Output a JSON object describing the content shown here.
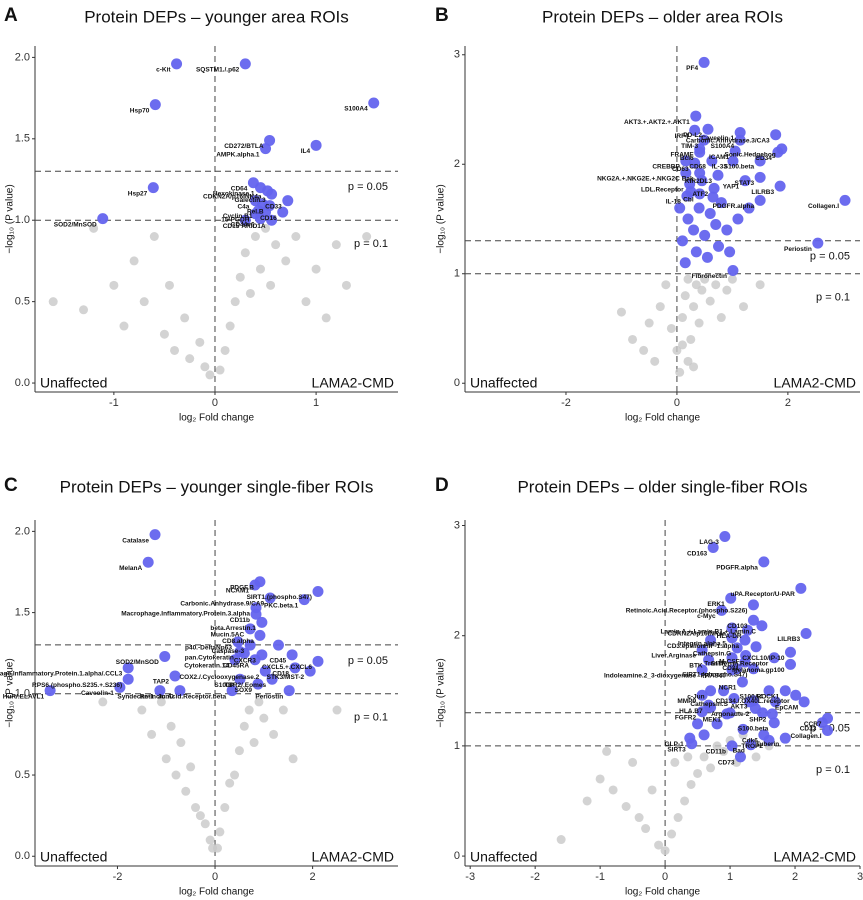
{
  "chart_data": [
    {
      "type": "scatter",
      "panel": "A",
      "title": "Protein DEPs – younger area ROIs",
      "xlabel": "log₂ Fold change",
      "ylabel": "−log₁₀ (P value)",
      "left_label": "Unaffected",
      "right_label": "LAMA2-CMD",
      "xlim": [
        -1.78,
        1.81
      ],
      "ylim": [
        -0.055,
        2.07
      ],
      "xticks": [
        -1,
        0,
        1
      ],
      "yticks": [
        {
          "value": 0,
          "label": "0.0"
        },
        {
          "value": 0.5,
          "label": "0.5"
        },
        {
          "value": 1,
          "label": "1.0"
        },
        {
          "value": 1.5,
          "label": "1.5"
        },
        {
          "value": 2,
          "label": "2.0"
        }
      ],
      "thresholds": [
        {
          "value": 1.30103,
          "label": "p = 0.05"
        },
        {
          "value": 1,
          "label": "p = 0.1"
        }
      ],
      "vline": 0,
      "series": [
        {
          "color": "#6464ee",
          "x": [
            -0.38,
            0.3,
            -0.59,
            1.57,
            0.54,
            1.0,
            0.5,
            -0.61,
            -1.11,
            0.38,
            0.45,
            0.52,
            0.56,
            0.4,
            0.72,
            0.43,
            0.54,
            0.4,
            0.67,
            0.45,
            0.56,
            0.3,
            0.5,
            0.47
          ],
          "values": [
            1.96,
            1.96,
            1.71,
            1.72,
            1.49,
            1.46,
            1.44,
            1.2,
            1.01,
            1.23,
            1.2,
            1.18,
            1.16,
            1.12,
            1.12,
            1.06,
            1.09,
            1.04,
            1.05,
            1.01,
            1.0,
            1.0,
            1.05,
            1.1
          ],
          "labels": [
            "c-Kit",
            "SQSTM1./.p62",
            "Hsp70",
            "S100A4",
            "CD272/BTLA",
            "IL4",
            "AMPK.alpha.1",
            "Hsp27",
            "SOD2/MnSOD",
            "CD64",
            "Hexokinase.1",
            "CDKN2A/p16INK4a",
            "Galectin.3",
            "C4a",
            "CD33",
            "Cyclin.B1",
            "Rel.B",
            "15-PGDH",
            "CD16",
            "CD44v6",
            "ARID1A",
            "CD15",
            null,
            null
          ]
        },
        {
          "color": "#c8c8c8",
          "x": [
            -1.6,
            -1.3,
            -1.2,
            -1.0,
            -0.9,
            -0.8,
            -0.7,
            -0.6,
            -0.5,
            -0.45,
            -0.4,
            -0.3,
            -0.25,
            -0.15,
            -0.1,
            -0.05,
            0.05,
            0.1,
            0.15,
            0.2,
            0.25,
            0.3,
            0.35,
            0.4,
            0.45,
            0.5,
            0.55,
            0.6,
            0.7,
            0.8,
            0.9,
            1.0,
            1.1,
            1.2,
            1.3,
            1.5
          ],
          "values": [
            0.5,
            0.45,
            0.95,
            0.6,
            0.35,
            0.75,
            0.5,
            0.9,
            0.3,
            0.6,
            0.2,
            0.4,
            0.15,
            0.25,
            0.1,
            0.05,
            0.08,
            0.2,
            0.35,
            0.5,
            0.65,
            0.8,
            0.55,
            0.9,
            0.7,
            0.95,
            0.6,
            0.85,
            0.75,
            0.9,
            0.5,
            0.7,
            0.4,
            0.85,
            0.6,
            0.9
          ]
        }
      ]
    },
    {
      "type": "scatter",
      "panel": "B",
      "title": "Protein DEPs – older area ROIs",
      "xlabel": "log₂ Fold change",
      "ylabel": "−log₁₀ (P value)",
      "left_label": "Unaffected",
      "right_label": "LAMA2-CMD",
      "xlim": [
        -3.82,
        3.3
      ],
      "ylim": [
        -0.08,
        3.08
      ],
      "xticks": [
        -2,
        0,
        2
      ],
      "yticks": [
        0,
        1,
        2,
        3
      ],
      "thresholds": [
        {
          "value": 1.30103,
          "label": "p = 0.05"
        },
        {
          "value": 1,
          "label": "p = 0.1"
        }
      ],
      "vline": 0,
      "series": [
        {
          "color": "#6464ee",
          "x": [
            0.49,
            0.34,
            0.32,
            0.56,
            1.14,
            0.49,
            1.78,
            1.89,
            0.41,
            0.41,
            1.14,
            1.05,
            1.82,
            0.16,
            0.32,
            0.63,
            1.01,
            1.5,
            0.16,
            0.41,
            0.74,
            1.5,
            0.23,
            0.67,
            1.23,
            1.86,
            0.18,
            0.41,
            3.03,
            1.5,
            2.54,
            1.01,
            0.1,
            0.2,
            0.3,
            0.4,
            0.5,
            0.6,
            0.7,
            0.8,
            0.9,
            0.25,
            0.45,
            0.65,
            0.15,
            0.35,
            0.55,
            1.1,
            1.3,
            0.75,
            0.05,
            0.95
          ],
          "values": [
            2.93,
            2.44,
            2.31,
            2.32,
            2.29,
            2.22,
            2.27,
            2.14,
            2.14,
            2.11,
            2.22,
            2.12,
            2.11,
            2.03,
            2.01,
            2.03,
            2.03,
            2.03,
            1.92,
            1.92,
            1.9,
            1.88,
            1.82,
            1.78,
            1.85,
            1.8,
            1.71,
            1.73,
            1.67,
            1.67,
            1.28,
            1.03,
            1.3,
            1.5,
            1.4,
            1.6,
            1.35,
            1.55,
            1.45,
            1.65,
            1.4,
            1.75,
            1.85,
            1.7,
            1.1,
            1.2,
            1.15,
            1.5,
            1.6,
            1.25,
            1.6,
            1.2
          ],
          "labels": [
            "PF4",
            "AKT3.+.AKT2.+.AKT1",
            "IRF4",
            "PD-L2",
            "Caveolin-1",
            "TIM-3",
            "Carbonic.Anhydrase.3/CA3",
            "Sonic.Hedgehog",
            "FRAME",
            "Bcl6",
            "S100A4",
            "ICAM1",
            "CD34",
            "CREBBP",
            "CD63",
            "CD68",
            "IL-33",
            "S100.beta",
            "NKG2A.+.NKG2E.+.NKG2C",
            "Bak",
            "KIR2DL3",
            "STAT3",
            "LDL.Receptor",
            "ATF2",
            "YAP1",
            "LILRB3",
            "IL-18",
            "Cbl",
            "Collagen.I",
            "PDGFR.alpha",
            "Periostin",
            "Fibronectin",
            null,
            null,
            null,
            null,
            null,
            null,
            null,
            null,
            null,
            null,
            null,
            null,
            null,
            null,
            null,
            null,
            null,
            null,
            null,
            null
          ]
        },
        {
          "color": "#c8c8c8",
          "x": [
            -1.0,
            -0.8,
            -0.6,
            -0.5,
            -0.4,
            -0.3,
            -0.2,
            -0.1,
            0,
            0.05,
            0.1,
            0.15,
            0.2,
            0.25,
            0.3,
            0.35,
            0.4,
            0.45,
            0.5,
            0.6,
            0.7,
            0.8,
            0.9,
            1.0,
            1.2,
            1.5,
            0.2,
            0.1,
            0.3
          ],
          "values": [
            0.65,
            0.4,
            0.3,
            0.55,
            0.2,
            0.7,
            0.9,
            0.5,
            0.3,
            0.1,
            0.6,
            0.8,
            0.95,
            0.4,
            0.7,
            0.9,
            0.55,
            0.85,
            0.95,
            0.75,
            0.9,
            0.6,
            0.85,
            0.95,
            0.7,
            0.9,
            0.2,
            0.35,
            0.15
          ]
        }
      ]
    },
    {
      "type": "scatter",
      "panel": "C",
      "title": "Protein DEPs – younger single-fiber ROIs",
      "xlabel": "log₂ Fold change",
      "ylabel": "−log₁₀ (P value)",
      "left_label": "Unaffected",
      "right_label": "LAMA2-CMD",
      "xlim": [
        -3.69,
        3.75
      ],
      "ylim": [
        -0.06,
        2.07
      ],
      "xticks": [
        -2,
        0,
        2
      ],
      "yticks": [
        {
          "value": 0,
          "label": "0.0"
        },
        {
          "value": 0.5,
          "label": "0.5"
        },
        {
          "value": 1,
          "label": "1.0"
        },
        {
          "value": 1.5,
          "label": "1.5"
        },
        {
          "value": 2,
          "label": "2.0"
        }
      ],
      "thresholds": [
        {
          "value": 1.30103,
          "label": "p = 0.05"
        },
        {
          "value": 1,
          "label": "p = 0.1"
        }
      ],
      "vline": 0,
      "series": [
        {
          "color": "#6464ee",
          "x": [
            -1.23,
            -1.37,
            0.92,
            0.82,
            2.11,
            0.84,
            1.13,
            1.83,
            0.84,
            0.96,
            0.72,
            0.92,
            0.47,
            0.72,
            0.96,
            0.51,
            1.58,
            0.41,
            0.82,
            -1.03,
            2.11,
            1.64,
            -1.78,
            1.03,
            1.95,
            -1.78,
            -0.82,
            0.51,
            0.88,
            1.17,
            -0.72,
            -1.95,
            -1.13,
            -3.38,
            0.35,
            1.52,
            0.6,
            1.3
          ],
          "values": [
            1.98,
            1.81,
            1.69,
            1.67,
            1.63,
            1.53,
            1.59,
            1.58,
            1.49,
            1.44,
            1.4,
            1.36,
            1.32,
            1.3,
            1.24,
            1.26,
            1.24,
            1.21,
            1.21,
            1.23,
            1.2,
            1.16,
            1.16,
            1.14,
            1.14,
            1.09,
            1.11,
            1.09,
            1.06,
            1.09,
            1.02,
            1.04,
            1.02,
            1.02,
            1.02,
            1.02,
            1.25,
            1.3
          ],
          "labels": [
            "Catalase",
            "MelanA",
            "PDGF.B",
            "NCAM1",
            "SIRT1.(phospho.S47)",
            "Macrophage.Inflammatory.Protein.3.alpha",
            "Carbonic.Anhydrase.9/CA9",
            "PKC.beta.1",
            "CD11b",
            "beta.Arrestin.1",
            "Mucin.5AC",
            "CD8.alpha",
            "p40.-DeltaNp63",
            "Caspase-3",
            "CXCR3",
            "pan.Cytokeratin",
            "CD45",
            "Cytokeratin.14",
            "CD45RA",
            "SOD2/MnSOD",
            "CXCL5.+.CXCL6",
            "CD18",
            "Macrophage.Inflammatory.Protein.1.alpha/.CCL3",
            "COX2./.Cyclooxygenase.2",
            "STK3/MST-2",
            "RPS6.(phospho.S235.+.S236)",
            "TAP2",
            "S100P",
            "SOX9",
            "TBR2/.Eomes",
            "JunD",
            "Caveolin-1",
            "Syndecan-1",
            "HuR/.ELAVL1",
            "Retinoic.Acid.Receptor.beta",
            "Periostin",
            null,
            null
          ]
        },
        {
          "color": "#c8c8c8",
          "x": [
            -1.5,
            -1.3,
            -1.1,
            -1,
            -0.9,
            -0.8,
            -0.7,
            -0.6,
            -0.5,
            -0.4,
            -0.3,
            -0.2,
            -0.1,
            -0.05,
            0.05,
            0.1,
            0.2,
            0.3,
            0.4,
            0.5,
            0.6,
            0.7,
            0.8,
            0.9,
            1.0,
            1.2,
            1.4,
            -2.3,
            2.5,
            1.6
          ],
          "values": [
            0.9,
            0.75,
            0.95,
            0.6,
            0.8,
            0.5,
            0.7,
            0.4,
            0.55,
            0.3,
            0.25,
            0.2,
            0.1,
            0.05,
            0.05,
            0.15,
            0.3,
            0.45,
            0.5,
            0.65,
            0.8,
            0.9,
            0.7,
            0.95,
            0.85,
            0.75,
            0.9,
            0.95,
            0.9,
            0.6
          ]
        }
      ]
    },
    {
      "type": "scatter",
      "panel": "D",
      "title": "Protein DEPs – older single-fiber ROIs",
      "xlabel": "log₂ Fold change",
      "ylabel": "−log₁₀ (P value)",
      "left_label": "Unaffected",
      "right_label": "LAMA2-CMD",
      "xlim": [
        -3.08,
        3.0
      ],
      "ylim": [
        -0.09,
        3.05
      ],
      "xticks": [
        -3,
        -2,
        -1,
        0,
        1,
        2,
        3
      ],
      "yticks": [
        0,
        1,
        2,
        3
      ],
      "thresholds": [
        {
          "value": 1.30103,
          "label": "p = 0.05"
        },
        {
          "value": 1,
          "label": "p = 0.1"
        }
      ],
      "vline": 0,
      "series": [
        {
          "color": "#6464ee",
          "x": [
            0.92,
            0.74,
            1.52,
            2.09,
            1.01,
            0.87,
            1.36,
            1.36,
            1.49,
            1.03,
            1.27,
            2.17,
            1.03,
            1.23,
            0.7,
            1.11,
            0.57,
            1.93,
            1.03,
            1.24,
            1.68,
            1.23,
            0.67,
            1.93,
            1.36,
            1.03,
            0.57,
            1.19,
            1.6,
            1.85,
            0.7,
            0.57,
            1.06,
            1.36,
            2.01,
            0.67,
            1.39,
            2.14,
            0.57,
            0.95,
            1.65,
            2.5,
            1.68,
            2.42,
            0.38,
            1.52,
            1.85,
            2.5,
            0.41,
            1.03,
            1.32,
            1.6,
            1.16,
            0.6,
            0.8,
            1.0,
            1.2,
            0.9,
            1.1,
            1.3,
            0.7,
            1.5,
            1.4,
            0.5,
            1.7
          ],
          "values": [
            2.9,
            2.8,
            2.67,
            2.43,
            2.34,
            2.23,
            2.28,
            2.14,
            2.09,
            2.07,
            2.05,
            2.02,
            1.98,
            1.96,
            1.96,
            1.89,
            1.87,
            1.85,
            1.8,
            1.82,
            1.8,
            1.76,
            1.78,
            1.74,
            1.7,
            1.69,
            1.69,
            1.58,
            1.5,
            1.5,
            1.5,
            1.46,
            1.43,
            1.41,
            1.46,
            1.37,
            1.34,
            1.4,
            1.31,
            1.29,
            1.29,
            1.25,
            1.21,
            1.21,
            1.07,
            1.1,
            1.07,
            1.14,
            1.02,
            1.0,
            1.01,
            1.05,
            0.9,
            1.1,
            1.2,
            1.3,
            1.15,
            1.5,
            1.7,
            1.4,
            1.35,
            1.3,
            1.9,
            1.2,
            1.4
          ],
          "labels": [
            "LAG-3",
            "CD163",
            "PDGFR.alpha",
            "uPA.Receptor/U-PAR",
            "ERK1",
            "c-Myc",
            "Retinoic.Acid.Receptor.(phospho.S226)",
            "CD103",
            "Lamin.A.+.Lamin.B1.+.Lamin.C",
            "CDKN2A/p16INK4a",
            "HLA-DR",
            "LILRB3",
            "Integrin.alpha.5",
            "HIF-1.alpha",
            "CD3.epsilon",
            "Cathepsin.G",
            "Liver.Arginase",
            "CXCL10/IP-10",
            "GITR",
            "M-CSF",
            "Transferrin.Receptor",
            "CD31",
            "BTK",
            "Melanoma.gp100",
            "SIRT1.(phospho.S47)",
            "PRAS40",
            "Indoleamine.2_3-dioxygenase",
            "NCR1",
            "S100A4",
            "ROCK1",
            "c-Jun",
            "MMP9",
            "Cathepsin.S",
            "AKT3",
            "CD134./.OX40L.receptor",
            "HLA.B7",
            "Argonaute-2",
            "EpCAM",
            "FGFR2",
            "MEK1",
            "SHP2",
            "CCR7",
            "S100.beta",
            "CD33",
            "GLP-1",
            "Cdk6",
            "Tuberin",
            "Collagen.I",
            "SIRT3",
            "CD11b",
            "Bad",
            "TROP2",
            "CD73",
            null,
            null,
            null,
            null,
            null,
            null,
            null,
            null,
            null,
            null,
            null,
            null
          ]
        },
        {
          "color": "#c8c8c8",
          "x": [
            -1.6,
            -1.2,
            -1,
            -0.8,
            -0.6,
            -0.5,
            -0.4,
            -0.3,
            -0.2,
            -0.1,
            0,
            0.1,
            0.2,
            0.3,
            0.4,
            0.5,
            0.6,
            0.7,
            0.8,
            0.9,
            1,
            1.1,
            1.2,
            1.4,
            1.6,
            -0.9,
            0.15,
            0.35
          ],
          "values": [
            0.15,
            0.5,
            0.7,
            0.6,
            0.45,
            0.85,
            0.35,
            0.25,
            0.6,
            0.1,
            0.05,
            0.2,
            0.35,
            0.5,
            0.65,
            0.75,
            0.9,
            0.8,
            1.0,
            0.95,
            1.05,
            0.85,
            1.1,
            0.9,
            1.0,
            0.95,
            0.85,
            0.9
          ]
        }
      ]
    }
  ]
}
